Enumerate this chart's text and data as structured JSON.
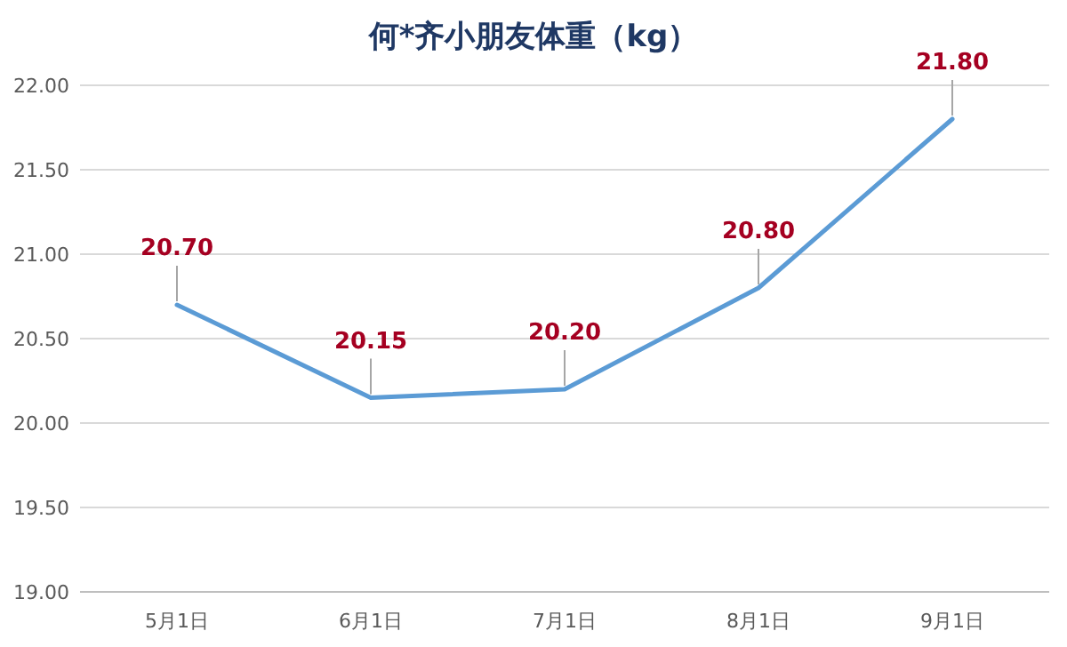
{
  "chart_data": {
    "type": "line",
    "title": "何*齐小朋友体重（kg）",
    "categories": [
      "5月1日",
      "6月1日",
      "7月1日",
      "8月1日",
      "9月1日"
    ],
    "series": [
      {
        "color": "#5b9bd5",
        "values": [
          20.7,
          20.15,
          20.2,
          20.8,
          21.8
        ],
        "value_labels": [
          "20.70",
          "20.15",
          "20.20",
          "20.80",
          "21.80"
        ]
      }
    ],
    "ylim": [
      19,
      22
    ],
    "yticks": [
      {
        "value": 19,
        "label": "19.00"
      },
      {
        "value": 19.5,
        "label": "19.50"
      },
      {
        "value": 20,
        "label": "20.00"
      },
      {
        "value": 20.5,
        "label": "20.50"
      },
      {
        "value": 21,
        "label": "21.00"
      },
      {
        "value": 21.5,
        "label": "21.50"
      },
      {
        "value": 22,
        "label": "22.00"
      }
    ],
    "grid": "y",
    "marker": "none",
    "line_style": "solid"
  }
}
